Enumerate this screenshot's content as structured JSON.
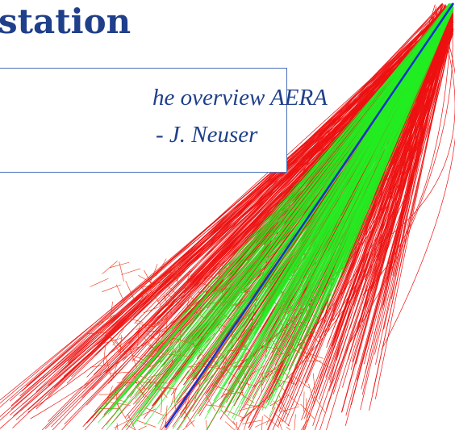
{
  "header": {
    "title": "station"
  },
  "note": {
    "lines": [
      "he overview AERA",
      "- J. Neuser"
    ]
  }
}
